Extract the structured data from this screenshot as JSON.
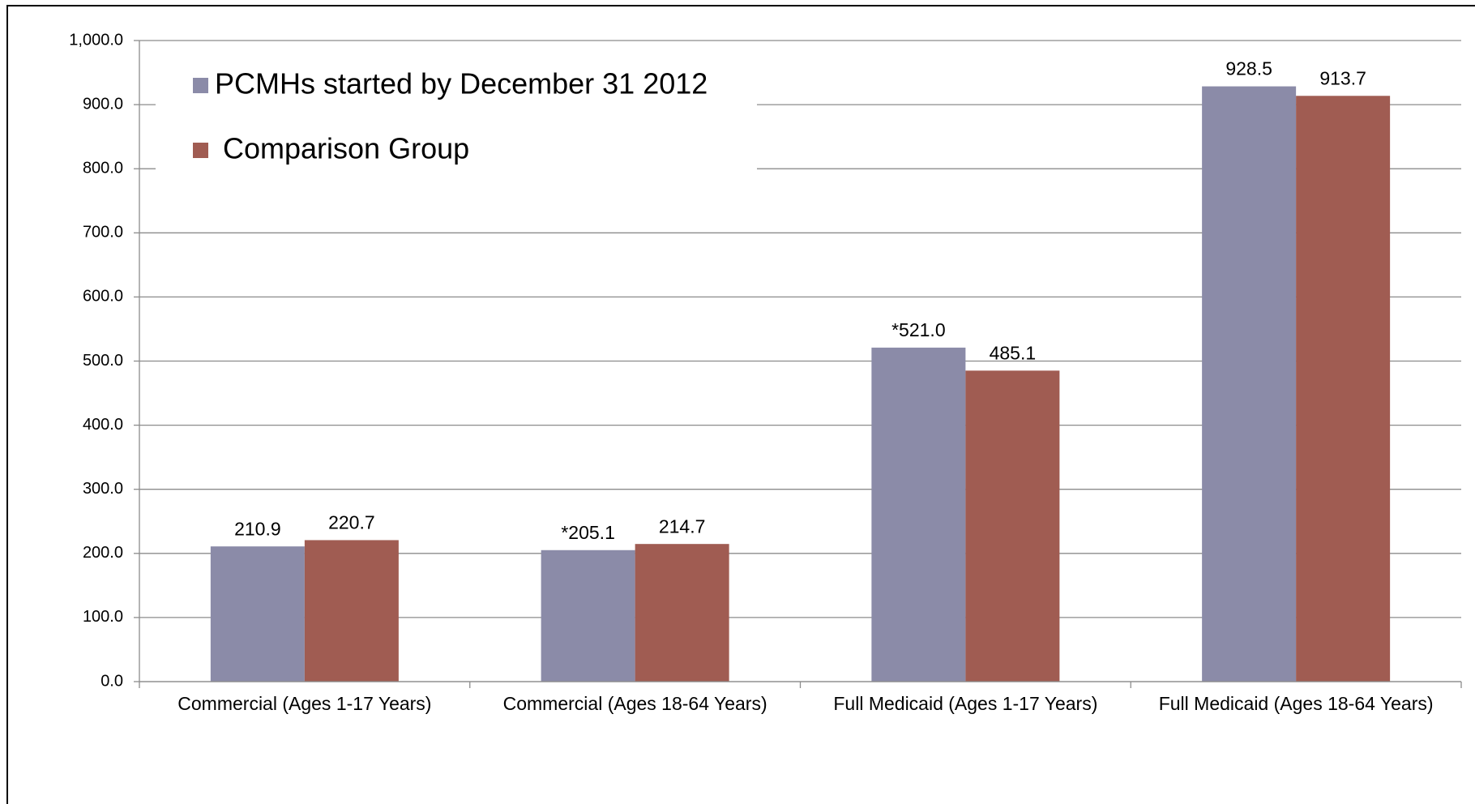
{
  "chart_data": {
    "type": "bar",
    "categories": [
      "Commercial (Ages 1-17 Years)",
      "Commercial (Ages 18-64 Years)",
      "Full Medicaid (Ages 1-17 Years)",
      "Full Medicaid (Ages 18-64 Years)"
    ],
    "series": [
      {
        "name": "PCMHs started by December 31 2012",
        "color": "#8b8ba8",
        "values": [
          210.9,
          205.1,
          521.0,
          928.5
        ],
        "value_labels": [
          "210.9",
          "*205.1",
          "*521.0",
          "928.5"
        ]
      },
      {
        "name": "Comparison Group",
        "color": "#a05c52",
        "values": [
          220.7,
          214.7,
          485.1,
          913.7
        ],
        "value_labels": [
          "220.7",
          "214.7",
          "485.1",
          "913.7"
        ]
      }
    ],
    "ylim": [
      0,
      1000
    ],
    "yticks": [
      {
        "value": 0,
        "label": "0.0"
      },
      {
        "value": 100,
        "label": "100.0"
      },
      {
        "value": 200,
        "label": "200.0"
      },
      {
        "value": 300,
        "label": "300.0"
      },
      {
        "value": 400,
        "label": "400.0"
      },
      {
        "value": 500,
        "label": "500.0"
      },
      {
        "value": 600,
        "label": "600.0"
      },
      {
        "value": 700,
        "label": "700.0"
      },
      {
        "value": 800,
        "label": "800.0"
      },
      {
        "value": 900,
        "label": "900.0"
      },
      {
        "value": 1000,
        "label": "1,000.0"
      }
    ],
    "grid": true,
    "legend": "top-left"
  }
}
